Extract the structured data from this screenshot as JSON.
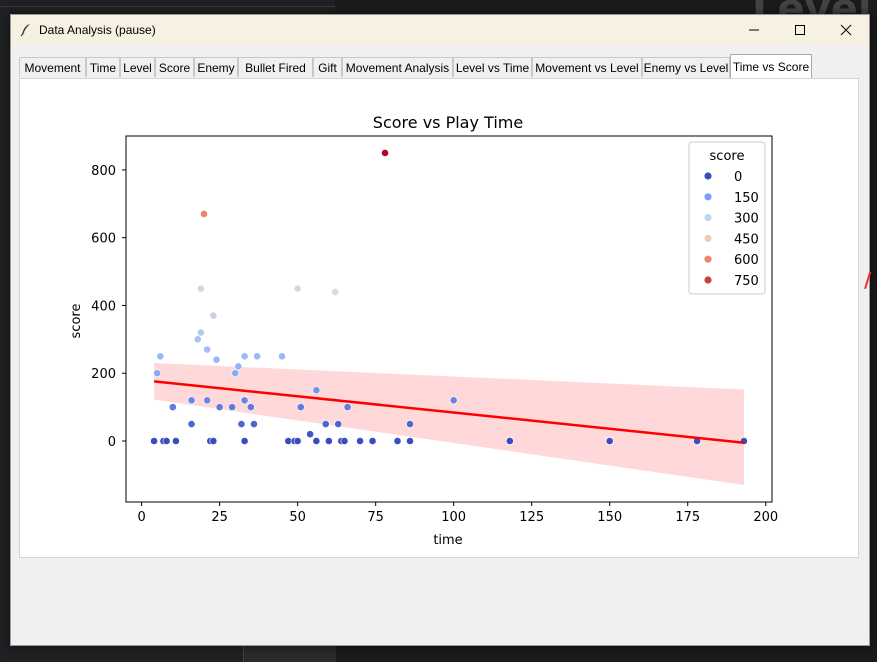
{
  "window": {
    "title": "Data Analysis (pause)"
  },
  "background": {
    "big_text": "Level"
  },
  "tabs": [
    {
      "label": "Movement"
    },
    {
      "label": "Time"
    },
    {
      "label": "Level"
    },
    {
      "label": "Score"
    },
    {
      "label": "Enemy"
    },
    {
      "label": "Bullet Fired"
    },
    {
      "label": "Gift"
    },
    {
      "label": "Movement Analysis"
    },
    {
      "label": "Level vs Time"
    },
    {
      "label": "Movement vs Level"
    },
    {
      "label": "Enemy vs Level"
    },
    {
      "label": "Time vs Score"
    }
  ],
  "active_tab": "Time vs Score",
  "chart_data": {
    "type": "scatter",
    "title": "Score vs Play Time",
    "xlabel": "time",
    "ylabel": "score",
    "xlim": [
      -5,
      202
    ],
    "ylim": [
      -180,
      900
    ],
    "xticks": [
      0,
      25,
      50,
      75,
      100,
      125,
      150,
      175,
      200
    ],
    "yticks": [
      0,
      200,
      400,
      600,
      800
    ],
    "legend": {
      "title": "score",
      "placement": "top-right",
      "entries": [
        {
          "label": "0",
          "color": "#3b4cc0"
        },
        {
          "label": "150",
          "color": "#7b9ff9"
        },
        {
          "label": "300",
          "color": "#c0d4f5"
        },
        {
          "label": "450",
          "color": "#f2cbb7"
        },
        {
          "label": "600",
          "color": "#ee8468"
        },
        {
          "label": "750",
          "color": "#cc403a"
        }
      ]
    },
    "colormap": "coolwarm",
    "hue_range": [
      0,
      850
    ],
    "points": [
      {
        "x": 4,
        "y": 0
      },
      {
        "x": 5,
        "y": 200
      },
      {
        "x": 6,
        "y": 250
      },
      {
        "x": 7,
        "y": 0
      },
      {
        "x": 8,
        "y": 0
      },
      {
        "x": 10,
        "y": 100
      },
      {
        "x": 11,
        "y": 0
      },
      {
        "x": 16,
        "y": 50
      },
      {
        "x": 16,
        "y": 120
      },
      {
        "x": 18,
        "y": 300
      },
      {
        "x": 19,
        "y": 450
      },
      {
        "x": 19,
        "y": 320
      },
      {
        "x": 20,
        "y": 670
      },
      {
        "x": 21,
        "y": 270
      },
      {
        "x": 21,
        "y": 120
      },
      {
        "x": 22,
        "y": 0
      },
      {
        "x": 23,
        "y": 370
      },
      {
        "x": 23,
        "y": 0
      },
      {
        "x": 24,
        "y": 240
      },
      {
        "x": 25,
        "y": 100
      },
      {
        "x": 29,
        "y": 100
      },
      {
        "x": 30,
        "y": 200
      },
      {
        "x": 31,
        "y": 220
      },
      {
        "x": 32,
        "y": 50
      },
      {
        "x": 33,
        "y": 250
      },
      {
        "x": 33,
        "y": 120
      },
      {
        "x": 33,
        "y": 0
      },
      {
        "x": 35,
        "y": 100
      },
      {
        "x": 36,
        "y": 50
      },
      {
        "x": 37,
        "y": 250
      },
      {
        "x": 45,
        "y": 250
      },
      {
        "x": 47,
        "y": 0
      },
      {
        "x": 49,
        "y": 0
      },
      {
        "x": 50,
        "y": 0
      },
      {
        "x": 50,
        "y": 450
      },
      {
        "x": 51,
        "y": 100
      },
      {
        "x": 54,
        "y": 20
      },
      {
        "x": 56,
        "y": 150
      },
      {
        "x": 56,
        "y": 0
      },
      {
        "x": 59,
        "y": 50
      },
      {
        "x": 60,
        "y": 0
      },
      {
        "x": 62,
        "y": 440
      },
      {
        "x": 63,
        "y": 50
      },
      {
        "x": 64,
        "y": 0
      },
      {
        "x": 65,
        "y": 0
      },
      {
        "x": 66,
        "y": 100
      },
      {
        "x": 70,
        "y": 0
      },
      {
        "x": 74,
        "y": 0
      },
      {
        "x": 78,
        "y": 850
      },
      {
        "x": 82,
        "y": 0
      },
      {
        "x": 86,
        "y": 50
      },
      {
        "x": 86,
        "y": 0
      },
      {
        "x": 100,
        "y": 120
      },
      {
        "x": 118,
        "y": 0
      },
      {
        "x": 150,
        "y": 0
      },
      {
        "x": 178,
        "y": 0
      },
      {
        "x": 193,
        "y": 0
      }
    ],
    "regression": {
      "color": "#ff0000",
      "x": [
        4,
        193
      ],
      "y": [
        176,
        -5
      ],
      "ci_lower": [
        122,
        -130
      ],
      "ci_upper": [
        230,
        152
      ]
    }
  }
}
